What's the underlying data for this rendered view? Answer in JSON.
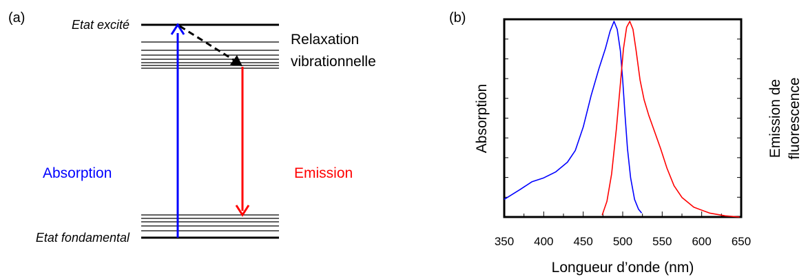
{
  "panel_a": {
    "label": "(a)",
    "excited_state_label": "Etat excité",
    "ground_state_label": "Etat fondamental",
    "relaxation_label_line1": "Relaxation",
    "relaxation_label_line2": "vibrationnelle",
    "absorption_label": "Absorption",
    "emission_label": "Emission",
    "colors": {
      "absorption": "#0000ff",
      "emission": "#ff0000",
      "levels": "#000000"
    }
  },
  "panel_b": {
    "label": "(b)",
    "chart_data": {
      "type": "line",
      "xlabel": "Longueur d’onde (nm)",
      "ylabel_left": "Absorption",
      "ylabel_right_line1": "Emission de",
      "ylabel_right_line2": "fluorescence",
      "xlim": [
        350,
        650
      ],
      "ylim": [
        0,
        1
      ],
      "x_ticks": [
        "350",
        "400",
        "450",
        "500",
        "550",
        "600",
        "650"
      ],
      "grid": false,
      "series": [
        {
          "color": "#0000ff",
          "points": [
            [
              350,
              0.09
            ],
            [
              370,
              0.14
            ],
            [
              385,
              0.18
            ],
            [
              400,
              0.2
            ],
            [
              415,
              0.23
            ],
            [
              430,
              0.28
            ],
            [
              440,
              0.34
            ],
            [
              450,
              0.46
            ],
            [
              460,
              0.62
            ],
            [
              470,
              0.76
            ],
            [
              478,
              0.86
            ],
            [
              484,
              0.95
            ],
            [
              489,
              1.0
            ],
            [
              493,
              0.96
            ],
            [
              497,
              0.85
            ],
            [
              500,
              0.7
            ],
            [
              503,
              0.52
            ],
            [
              506,
              0.35
            ],
            [
              510,
              0.2
            ],
            [
              515,
              0.09
            ],
            [
              520,
              0.04
            ],
            [
              524,
              0.02
            ]
          ]
        },
        {
          "color": "#ff0000",
          "points": [
            [
              474,
              0.01
            ],
            [
              480,
              0.08
            ],
            [
              486,
              0.22
            ],
            [
              492,
              0.45
            ],
            [
              497,
              0.68
            ],
            [
              501,
              0.86
            ],
            [
              505,
              0.97
            ],
            [
              509,
              1.0
            ],
            [
              513,
              0.96
            ],
            [
              517,
              0.85
            ],
            [
              522,
              0.7
            ],
            [
              527,
              0.6
            ],
            [
              533,
              0.52
            ],
            [
              540,
              0.44
            ],
            [
              548,
              0.35
            ],
            [
              556,
              0.25
            ],
            [
              565,
              0.16
            ],
            [
              575,
              0.1
            ],
            [
              590,
              0.05
            ],
            [
              610,
              0.02
            ],
            [
              630,
              0.006
            ],
            [
              648,
              0.0
            ]
          ]
        }
      ]
    }
  }
}
